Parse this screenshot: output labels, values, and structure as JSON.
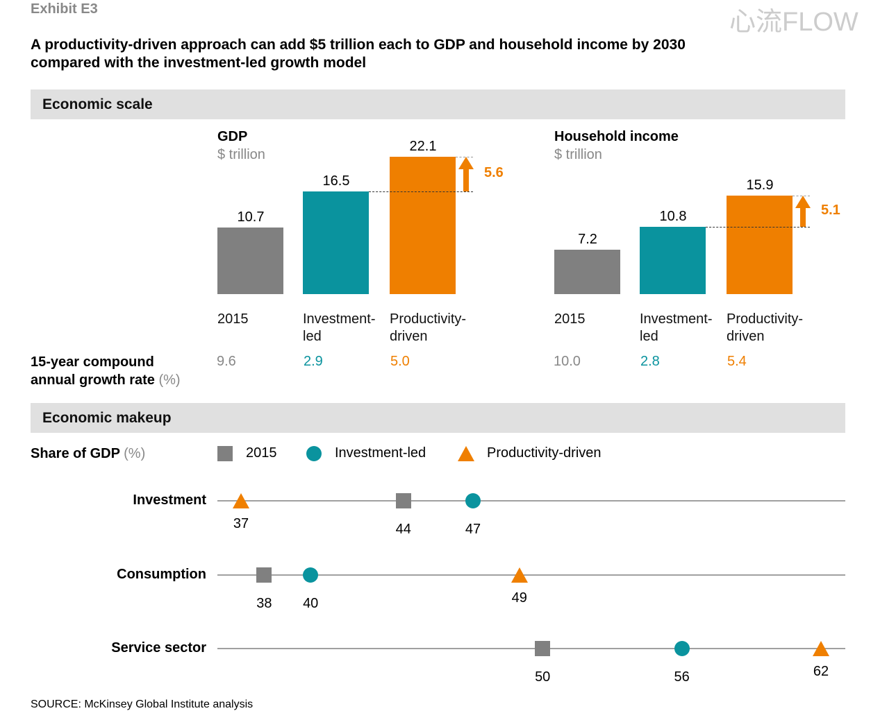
{
  "exhibit": "Exhibit E3",
  "title_line1": "A productivity-driven approach can add $5 trillion each to GDP and household income by 2030",
  "title_line2": "compared with the investment-led growth model",
  "section1": "Economic scale",
  "section2": "Economic makeup",
  "colors": {
    "2015": "#808080",
    "investment": "#0a939e",
    "productivity": "#ef7f00"
  },
  "cagr_label1": "15-year compound",
  "cagr_label2": "annual growth rate",
  "cagr_unit": "(%)",
  "chart_data": [
    {
      "type": "bar",
      "title": "GDP",
      "unit": "$ trillion",
      "categories": [
        "2015",
        "Investment-\nled",
        "Productivity-\ndriven"
      ],
      "cat_lines": [
        [
          "2015"
        ],
        [
          "Investment-",
          "led"
        ],
        [
          "Productivity-",
          "driven"
        ]
      ],
      "values": [
        10.7,
        16.5,
        22.1
      ],
      "labels": [
        "10.7",
        "16.5",
        "22.1"
      ],
      "delta": "5.6",
      "cagr": [
        "9.6",
        "2.9",
        "5.0"
      ]
    },
    {
      "type": "bar",
      "title": "Household income",
      "unit": "$ trillion",
      "categories": [
        "2015",
        "Investment-\nled",
        "Productivity-\ndriven"
      ],
      "cat_lines": [
        [
          "2015"
        ],
        [
          "Investment-",
          "led"
        ],
        [
          "Productivity-",
          "driven"
        ]
      ],
      "values": [
        7.2,
        10.8,
        15.9
      ],
      "labels": [
        "7.2",
        "10.8",
        "15.9"
      ],
      "delta": "5.1",
      "cagr": [
        "10.0",
        "2.8",
        "5.4"
      ]
    },
    {
      "type": "scatter",
      "title": "Share of GDP",
      "unit": "(%)",
      "legend": [
        "2015",
        "Investment-led",
        "Productivity-driven"
      ],
      "rows": [
        {
          "label": "Investment",
          "values": [
            44,
            47,
            37
          ]
        },
        {
          "label": "Consumption",
          "values": [
            38,
            40,
            49
          ]
        },
        {
          "label": "Service sector",
          "values": [
            50,
            56,
            62
          ]
        }
      ]
    }
  ],
  "source": "SOURCE: McKinsey Global Institute analysis",
  "watermark": "心流FLOW"
}
